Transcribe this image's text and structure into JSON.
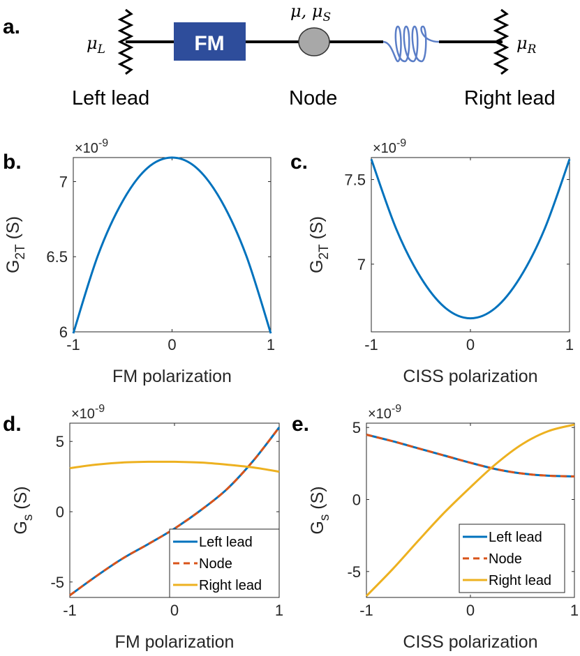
{
  "panel_labels": [
    "a.",
    "b.",
    "c.",
    "d.",
    "e."
  ],
  "diagram": {
    "fm_box": "FM",
    "left_potential_symbol": "μ",
    "left_potential_sub": "L",
    "right_potential_symbol": "μ",
    "right_potential_sub": "R",
    "node_potential_a": "μ",
    "node_potential_sep": ", ",
    "node_potential_b": "μ",
    "node_potential_b_sub": "S",
    "left_label": "Left lead",
    "node_label": "Node",
    "right_label": "Right lead",
    "colors": {
      "fm": "#2e4d9b",
      "node": "#a8a8a8",
      "coil": "#5b7ec7"
    }
  },
  "chart_data": [
    {
      "id": "b",
      "type": "line",
      "title": "",
      "xlabel": "FM polarization",
      "ylabel_main": "G",
      "ylabel_sub": "2T",
      "ylabel_unit": " (S)",
      "scale_base": "×10",
      "scale_exp": "-9",
      "xlim": [
        -1,
        1
      ],
      "ylim": [
        6.0,
        7.16
      ],
      "xticks": [
        -1,
        0,
        1
      ],
      "xtick_labels": [
        "-1",
        "0",
        "1"
      ],
      "yticks": [
        6,
        6.5,
        7
      ],
      "ytick_labels": [
        "6",
        "6.5",
        "7"
      ],
      "series": [
        {
          "name": "G2T",
          "color": "#0072bd",
          "dashed": false,
          "x": [
            -1,
            -0.75,
            -0.5,
            -0.25,
            0,
            0.25,
            0.5,
            0.75,
            1
          ],
          "y": [
            5.99,
            6.51,
            6.87,
            7.09,
            7.16,
            7.09,
            6.87,
            6.51,
            5.99
          ]
        }
      ]
    },
    {
      "id": "c",
      "type": "line",
      "title": "",
      "xlabel": "CISS polarization",
      "ylabel_main": "G",
      "ylabel_sub": "2T",
      "ylabel_unit": " (S)",
      "scale_base": "×10",
      "scale_exp": "-9",
      "xlim": [
        -1,
        1
      ],
      "ylim": [
        6.6,
        7.63
      ],
      "xticks": [
        -1,
        0,
        1
      ],
      "xtick_labels": [
        "-1",
        "0",
        "1"
      ],
      "yticks": [
        7,
        7.5
      ],
      "ytick_labels": [
        "7",
        "7.5"
      ],
      "series": [
        {
          "name": "G2T",
          "color": "#0072bd",
          "dashed": false,
          "x": [
            -1,
            -0.75,
            -0.5,
            -0.25,
            0,
            0.25,
            0.5,
            0.75,
            1
          ],
          "y": [
            7.62,
            7.21,
            6.92,
            6.74,
            6.68,
            6.74,
            6.92,
            7.21,
            7.62
          ]
        }
      ]
    },
    {
      "id": "d",
      "type": "line",
      "title": "",
      "xlabel": "FM polarization",
      "ylabel_main": "G",
      "ylabel_sub": "s",
      "ylabel_unit": " (S)",
      "scale_base": "×10",
      "scale_exp": "-9",
      "xlim": [
        -1,
        1
      ],
      "ylim": [
        -6.1,
        6.3
      ],
      "xticks": [
        -1,
        0,
        1
      ],
      "xtick_labels": [
        "-1",
        "0",
        "1"
      ],
      "yticks": [
        -5,
        0,
        5
      ],
      "ytick_labels": [
        "-5",
        "0",
        "5"
      ],
      "legend_position": "bottom-right",
      "series": [
        {
          "name": "Left lead",
          "color": "#0072bd",
          "dashed": false,
          "x": [
            -1,
            -0.75,
            -0.5,
            -0.25,
            0,
            0.25,
            0.5,
            0.75,
            1
          ],
          "y": [
            -5.95,
            -4.6,
            -3.35,
            -2.3,
            -1.2,
            0.1,
            1.6,
            3.6,
            6.0
          ]
        },
        {
          "name": "Node",
          "color": "#d95319",
          "dashed": true,
          "x": [
            -1,
            -0.75,
            -0.5,
            -0.25,
            0,
            0.25,
            0.5,
            0.75,
            1
          ],
          "y": [
            -5.95,
            -4.6,
            -3.35,
            -2.3,
            -1.2,
            0.1,
            1.6,
            3.6,
            6.0
          ]
        },
        {
          "name": "Right lead",
          "color": "#edb120",
          "dashed": false,
          "x": [
            -1,
            -0.75,
            -0.5,
            -0.25,
            0,
            0.25,
            0.5,
            0.75,
            1
          ],
          "y": [
            3.1,
            3.35,
            3.5,
            3.55,
            3.55,
            3.5,
            3.35,
            3.15,
            2.85
          ]
        }
      ]
    },
    {
      "id": "e",
      "type": "line",
      "title": "",
      "xlabel": "CISS polarization",
      "ylabel_main": "G",
      "ylabel_sub": "s",
      "ylabel_unit": " (S)",
      "scale_base": "×10",
      "scale_exp": "-9",
      "xlim": [
        -1,
        1
      ],
      "ylim": [
        -6.8,
        5.3
      ],
      "xticks": [
        -1,
        0,
        1
      ],
      "xtick_labels": [
        "-1",
        "0",
        "1"
      ],
      "yticks": [
        -5,
        0,
        5
      ],
      "ytick_labels": [
        "-5",
        "0",
        "5"
      ],
      "legend_position": "bottom-right",
      "series": [
        {
          "name": "Left lead",
          "color": "#0072bd",
          "dashed": false,
          "x": [
            -1,
            -0.75,
            -0.5,
            -0.25,
            0,
            0.25,
            0.5,
            0.75,
            1
          ],
          "y": [
            4.5,
            4.05,
            3.55,
            3.05,
            2.55,
            2.1,
            1.8,
            1.65,
            1.6
          ]
        },
        {
          "name": "Node",
          "color": "#d95319",
          "dashed": true,
          "x": [
            -1,
            -0.75,
            -0.5,
            -0.25,
            0,
            0.25,
            0.5,
            0.75,
            1
          ],
          "y": [
            4.5,
            4.05,
            3.55,
            3.05,
            2.55,
            2.1,
            1.8,
            1.65,
            1.6
          ]
        },
        {
          "name": "Right lead",
          "color": "#edb120",
          "dashed": false,
          "x": [
            -1,
            -0.75,
            -0.5,
            -0.25,
            0,
            0.25,
            0.5,
            0.75,
            1
          ],
          "y": [
            -6.7,
            -4.85,
            -2.85,
            -0.9,
            0.85,
            2.5,
            3.85,
            4.75,
            5.2
          ]
        }
      ]
    }
  ]
}
